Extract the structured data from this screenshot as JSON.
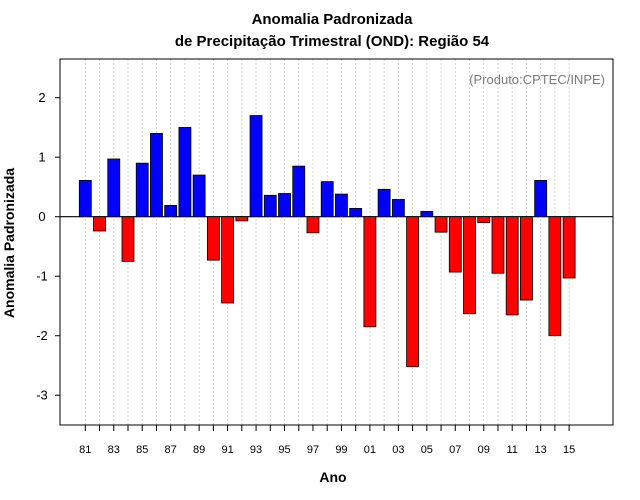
{
  "chart_data": {
    "type": "bar",
    "title": "Anomalia Padronizada",
    "subtitle": "de Precipitação Trimestral (OND): Região 54",
    "xlabel": "Ano",
    "ylabel": "Anomalia Padronizada",
    "annotation": "(Produto:CPTEC/INPE)",
    "ylim": [
      -3.5,
      2.65
    ],
    "yticks": [
      "2",
      "1",
      "0",
      "-1",
      "-2",
      "-3"
    ],
    "ytick_values": [
      2,
      1,
      0,
      -1,
      -2,
      -3
    ],
    "xtick_labels": [
      "81",
      "83",
      "85",
      "87",
      "89",
      "91",
      "93",
      "95",
      "97",
      "99",
      "01",
      "03",
      "05",
      "07",
      "09",
      "11",
      "13",
      "15"
    ],
    "years": [
      "1981",
      "1982",
      "1983",
      "1984",
      "1985",
      "1986",
      "1987",
      "1988",
      "1989",
      "1990",
      "1991",
      "1992",
      "1993",
      "1994",
      "1995",
      "1996",
      "1997",
      "1998",
      "1999",
      "2000",
      "2001",
      "2002",
      "2003",
      "2004",
      "2005",
      "2006",
      "2007",
      "2008",
      "2009",
      "2010",
      "2011",
      "2012",
      "2013",
      "2014",
      "2015"
    ],
    "values": [
      0.61,
      -0.24,
      0.97,
      -0.75,
      0.9,
      1.4,
      0.19,
      1.5,
      0.7,
      -0.73,
      -1.45,
      -0.07,
      1.7,
      0.36,
      0.39,
      0.85,
      -0.27,
      0.59,
      0.38,
      0.14,
      -1.85,
      0.46,
      0.29,
      -2.52,
      0.09,
      -0.26,
      -0.93,
      -1.63,
      -0.1,
      -0.95,
      -1.65,
      -1.4,
      0.61,
      -2.0,
      -1.03
    ],
    "colors": {
      "positive": "#0000ff",
      "negative": "#ff0000",
      "grid": "#c8c8c8",
      "axis": "#000000"
    },
    "grid": true
  }
}
